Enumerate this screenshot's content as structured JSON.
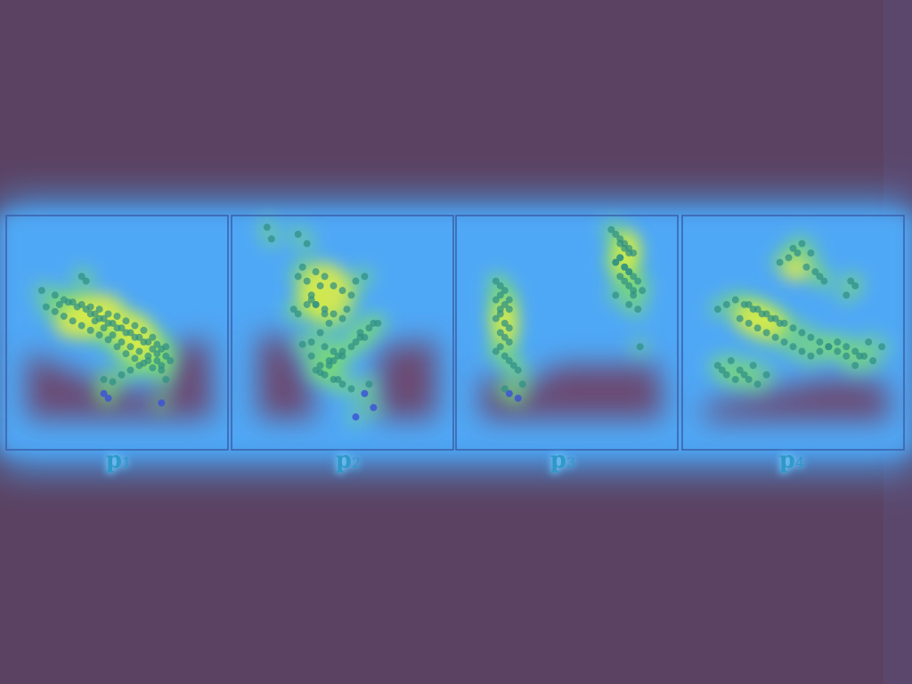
{
  "colors": {
    "background": "#5b4262",
    "band": "#4da6f5",
    "panel_border": "#3a5fa8",
    "cold_spot": "#6a4a70",
    "hot_spot": "#f2f03a",
    "point": "#2e8f84",
    "point_sparse": "#3a50d8"
  },
  "chart_data": [
    {
      "type": "scatter",
      "name_label": "p",
      "subscript": "1",
      "x": [
        0.16,
        0.22,
        0.26,
        0.24,
        0.3,
        0.34,
        0.38,
        0.42,
        0.46,
        0.5,
        0.54,
        0.58,
        0.62,
        0.66,
        0.68,
        0.7,
        0.64,
        0.6,
        0.56,
        0.52,
        0.48,
        0.44,
        0.4,
        0.36,
        0.32,
        0.28,
        0.72,
        0.74,
        0.7,
        0.66,
        0.62,
        0.58,
        0.54,
        0.5,
        0.46,
        0.42,
        0.38,
        0.34,
        0.3,
        0.26,
        0.22,
        0.18,
        0.44,
        0.48,
        0.52,
        0.56,
        0.6,
        0.64,
        0.68,
        0.72,
        0.34,
        0.36,
        0.4,
        0.44,
        0.48,
        0.52,
        0.56,
        0.6,
        0.64,
        0.68,
        0.7,
        0.72,
        0.66,
        0.62,
        0.58,
        0.54,
        0.5,
        0.46,
        0.42,
        0.38,
        0.44,
        0.46,
        0.7
      ],
      "y": [
        0.68,
        0.66,
        0.64,
        0.62,
        0.63,
        0.62,
        0.61,
        0.6,
        0.58,
        0.57,
        0.55,
        0.53,
        0.51,
        0.48,
        0.45,
        0.43,
        0.46,
        0.48,
        0.5,
        0.52,
        0.54,
        0.56,
        0.58,
        0.6,
        0.61,
        0.63,
        0.4,
        0.38,
        0.36,
        0.35,
        0.37,
        0.39,
        0.41,
        0.44,
        0.47,
        0.49,
        0.51,
        0.53,
        0.55,
        0.57,
        0.59,
        0.61,
        0.3,
        0.29,
        0.32,
        0.34,
        0.36,
        0.38,
        0.41,
        0.44,
        0.74,
        0.72,
        0.55,
        0.52,
        0.49,
        0.46,
        0.44,
        0.42,
        0.4,
        0.38,
        0.34,
        0.3,
        0.43,
        0.46,
        0.48,
        0.5,
        0.52,
        0.54,
        0.56,
        0.58,
        0.24,
        0.22,
        0.2
      ]
    },
    {
      "type": "scatter",
      "name_label": "p",
      "subscript": "2",
      "x": [
        0.16,
        0.18,
        0.3,
        0.34,
        0.32,
        0.3,
        0.34,
        0.38,
        0.42,
        0.46,
        0.5,
        0.54,
        0.4,
        0.36,
        0.34,
        0.38,
        0.42,
        0.46,
        0.5,
        0.44,
        0.4,
        0.36,
        0.42,
        0.46,
        0.5,
        0.44,
        0.4,
        0.38,
        0.42,
        0.46,
        0.5,
        0.54,
        0.58,
        0.62,
        0.66,
        0.6,
        0.56,
        0.48,
        0.44,
        0.4,
        0.36,
        0.32,
        0.52,
        0.56,
        0.6,
        0.64,
        0.58,
        0.54,
        0.5,
        0.46,
        0.3,
        0.28,
        0.36,
        0.38,
        0.42,
        0.48,
        0.62,
        0.6,
        0.64,
        0.56
      ],
      "y": [
        0.95,
        0.9,
        0.92,
        0.88,
        0.78,
        0.74,
        0.72,
        0.76,
        0.74,
        0.7,
        0.68,
        0.66,
        0.7,
        0.66,
        0.62,
        0.62,
        0.6,
        0.58,
        0.56,
        0.54,
        0.5,
        0.46,
        0.44,
        0.42,
        0.4,
        0.38,
        0.36,
        0.34,
        0.32,
        0.3,
        0.28,
        0.26,
        0.5,
        0.52,
        0.54,
        0.48,
        0.46,
        0.4,
        0.36,
        0.33,
        0.4,
        0.45,
        0.6,
        0.72,
        0.74,
        0.54,
        0.48,
        0.44,
        0.42,
        0.38,
        0.58,
        0.6,
        0.64,
        0.62,
        0.58,
        0.3,
        0.28,
        0.24,
        0.18,
        0.14
      ]
    },
    {
      "type": "scatter",
      "name_label": "p",
      "subscript": "3",
      "x": [
        0.18,
        0.2,
        0.22,
        0.2,
        0.18,
        0.22,
        0.24,
        0.2,
        0.18,
        0.22,
        0.24,
        0.2,
        0.22,
        0.24,
        0.2,
        0.18,
        0.22,
        0.24,
        0.26,
        0.28,
        0.3,
        0.24,
        0.28,
        0.22,
        0.2,
        0.24,
        0.7,
        0.72,
        0.74,
        0.76,
        0.78,
        0.8,
        0.74,
        0.72,
        0.76,
        0.78,
        0.74,
        0.76,
        0.78,
        0.8,
        0.72,
        0.74,
        0.76,
        0.78,
        0.74,
        0.72,
        0.76,
        0.78,
        0.8,
        0.82,
        0.84,
        0.83,
        0.82,
        0.8,
        0.78
      ],
      "y": [
        0.72,
        0.7,
        0.68,
        0.66,
        0.64,
        0.62,
        0.6,
        0.58,
        0.56,
        0.54,
        0.52,
        0.5,
        0.48,
        0.46,
        0.44,
        0.42,
        0.4,
        0.38,
        0.36,
        0.34,
        0.28,
        0.24,
        0.22,
        0.26,
        0.6,
        0.64,
        0.94,
        0.92,
        0.9,
        0.88,
        0.86,
        0.84,
        0.82,
        0.8,
        0.78,
        0.76,
        0.74,
        0.72,
        0.7,
        0.68,
        0.66,
        0.88,
        0.86,
        0.84,
        0.82,
        0.8,
        0.78,
        0.76,
        0.74,
        0.72,
        0.68,
        0.44,
        0.6,
        0.66,
        0.62
      ]
    },
    {
      "type": "scatter",
      "name_label": "p",
      "subscript": "4",
      "x": [
        0.16,
        0.2,
        0.24,
        0.28,
        0.32,
        0.36,
        0.4,
        0.44,
        0.26,
        0.3,
        0.34,
        0.38,
        0.42,
        0.46,
        0.5,
        0.54,
        0.58,
        0.62,
        0.66,
        0.7,
        0.74,
        0.78,
        0.82,
        0.86,
        0.9,
        0.78,
        0.74,
        0.7,
        0.66,
        0.62,
        0.58,
        0.54,
        0.5,
        0.46,
        0.42,
        0.38,
        0.34,
        0.3,
        0.44,
        0.48,
        0.52,
        0.56,
        0.6,
        0.62,
        0.64,
        0.5,
        0.54,
        0.58,
        0.76,
        0.78,
        0.74,
        0.16,
        0.18,
        0.2,
        0.24,
        0.28,
        0.32,
        0.22,
        0.26,
        0.3,
        0.34,
        0.38,
        0.84,
        0.8
      ],
      "y": [
        0.6,
        0.62,
        0.64,
        0.62,
        0.6,
        0.58,
        0.56,
        0.54,
        0.56,
        0.54,
        0.52,
        0.5,
        0.48,
        0.46,
        0.44,
        0.42,
        0.4,
        0.42,
        0.44,
        0.46,
        0.44,
        0.42,
        0.4,
        0.38,
        0.44,
        0.36,
        0.4,
        0.42,
        0.44,
        0.46,
        0.48,
        0.5,
        0.52,
        0.54,
        0.56,
        0.58,
        0.6,
        0.62,
        0.8,
        0.82,
        0.84,
        0.78,
        0.76,
        0.74,
        0.72,
        0.86,
        0.88,
        0.84,
        0.72,
        0.7,
        0.66,
        0.36,
        0.34,
        0.32,
        0.3,
        0.32,
        0.36,
        0.38,
        0.34,
        0.3,
        0.28,
        0.32,
        0.46,
        0.4
      ]
    }
  ]
}
